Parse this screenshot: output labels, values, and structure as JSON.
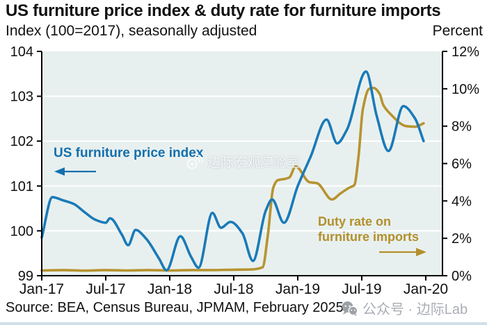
{
  "header": {
    "title": "US furniture price index & duty rate for furniture imports",
    "subtitle_left": "Index (100=2017), seasonally adjusted",
    "subtitle_right": "Percent"
  },
  "source_line": "Source: BEA, Census Bureau, JPMAM, February 2025",
  "watermarks": {
    "center_text": "边际宏观实验室",
    "bottom_text": "公众号 · 边际Lab"
  },
  "annotations": {
    "price_index": {
      "label": "US furniture price index",
      "color": "#1470ae"
    },
    "duty_rate": {
      "label_line1": "Duty rate on",
      "label_line2": "furniture imports",
      "color": "#b2902c"
    }
  },
  "chart_data": {
    "type": "line",
    "title": "US furniture price index & duty rate for furniture imports",
    "x_tick_labels": [
      "Jan-17",
      "Jul-17",
      "Jan-18",
      "Jul-18",
      "Jan-19",
      "Jul-19",
      "Jan-20"
    ],
    "x_tick_months": [
      0,
      6,
      12,
      18,
      24,
      30,
      36
    ],
    "left_axis": {
      "label": "Index (100=2017), seasonally adjusted",
      "tick_labels": [
        "104",
        "103",
        "102",
        "101",
        "100",
        "99"
      ],
      "tick_values": [
        104,
        103,
        102,
        101,
        100,
        99
      ],
      "min": 99,
      "max": 104
    },
    "right_axis": {
      "label": "Percent",
      "tick_labels": [
        "12%",
        "10%",
        "8%",
        "6%",
        "4%",
        "2%",
        "0%"
      ],
      "tick_values": [
        12,
        10,
        8,
        6,
        4,
        2,
        0
      ],
      "min": 0,
      "max": 12
    },
    "gridline_values": [
      100,
      101,
      102,
      103
    ],
    "plot_bg_color": "#e8f0ef",
    "series": [
      {
        "name": "Duty rate on furniture imports",
        "axis": "right",
        "color": "#b79330",
        "points": [
          [
            0,
            0.28
          ],
          [
            2,
            0.3
          ],
          [
            4,
            0.27
          ],
          [
            6,
            0.3
          ],
          [
            8,
            0.28
          ],
          [
            10,
            0.3
          ],
          [
            12,
            0.28
          ],
          [
            14,
            0.3
          ],
          [
            16,
            0.3
          ],
          [
            18,
            0.32
          ],
          [
            19.5,
            0.33
          ],
          [
            20.7,
            0.45
          ],
          [
            21.2,
            2.2
          ],
          [
            21.7,
            4.7
          ],
          [
            22.1,
            5.1
          ],
          [
            22.8,
            5.18
          ],
          [
            23.2,
            5.25
          ],
          [
            23.8,
            5.85
          ],
          [
            25.1,
            5.0
          ],
          [
            25.8,
            4.95
          ],
          [
            27.2,
            4.08
          ],
          [
            28,
            4.4
          ],
          [
            28.8,
            4.7
          ],
          [
            29.3,
            4.85
          ],
          [
            29.7,
            6.4
          ],
          [
            30.1,
            8.9
          ],
          [
            30.7,
            10.0
          ],
          [
            31.1,
            10.05
          ],
          [
            31.7,
            9.7
          ],
          [
            32.0,
            9.15
          ],
          [
            32.6,
            8.7
          ],
          [
            34.2,
            8.0
          ],
          [
            35,
            7.97
          ],
          [
            35.8,
            8.15
          ]
        ]
      },
      {
        "name": "US furniture price index",
        "axis": "left",
        "color": "#1a7ab8",
        "points": [
          [
            0,
            99.85
          ],
          [
            1,
            100.75
          ],
          [
            2,
            100.68
          ],
          [
            3,
            100.6
          ],
          [
            4,
            100.42
          ],
          [
            5,
            100.25
          ],
          [
            6,
            100.18
          ],
          [
            6.4,
            100.28
          ],
          [
            7.5,
            99.92
          ],
          [
            8.1,
            99.68
          ],
          [
            8.8,
            100.02
          ],
          [
            9.8,
            99.82
          ],
          [
            11,
            99.38
          ],
          [
            11.7,
            99.12
          ],
          [
            13,
            99.88
          ],
          [
            14,
            99.42
          ],
          [
            14.7,
            99.18
          ],
          [
            16,
            100.4
          ],
          [
            16.8,
            100.07
          ],
          [
            17.7,
            100.2
          ],
          [
            18.8,
            99.95
          ],
          [
            19.8,
            99.33
          ],
          [
            21,
            100.45
          ],
          [
            21.6,
            100.7
          ],
          [
            22.7,
            100.18
          ],
          [
            24,
            101.0
          ],
          [
            25.2,
            101.65
          ],
          [
            26.7,
            102.48
          ],
          [
            27.7,
            101.95
          ],
          [
            28.6,
            102.25
          ],
          [
            30.4,
            103.55
          ],
          [
            31.4,
            102.56
          ],
          [
            32.5,
            101.78
          ],
          [
            33.9,
            102.78
          ],
          [
            35,
            102.5
          ],
          [
            35.8,
            102.0
          ]
        ]
      }
    ]
  }
}
